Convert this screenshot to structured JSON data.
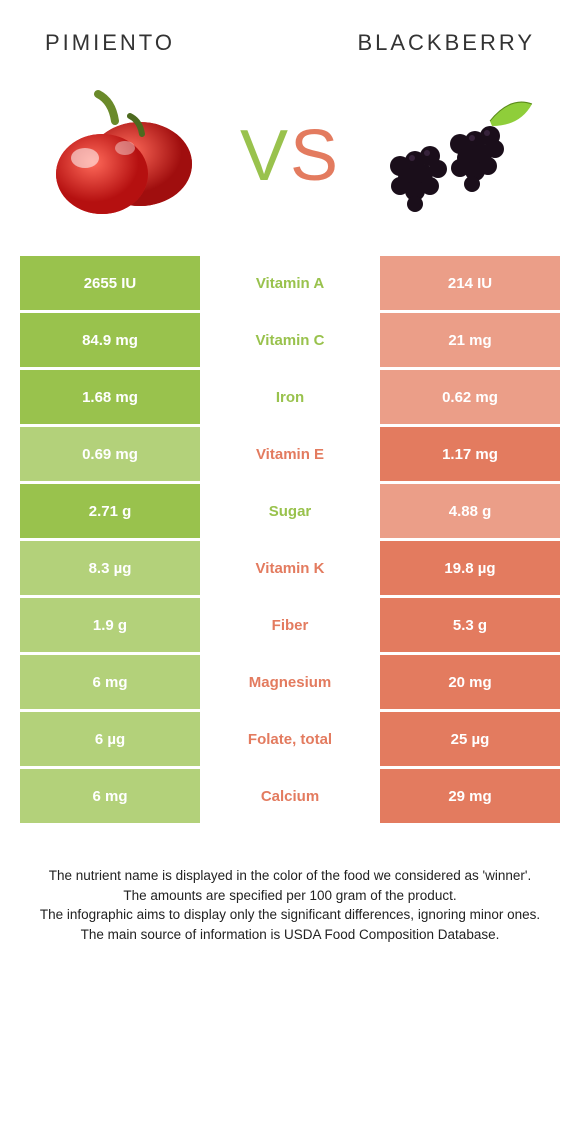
{
  "colors": {
    "left": "#99c24d",
    "right": "#e37b5f",
    "left_dim": "#b3d17a",
    "right_dim": "#eb9e88"
  },
  "header": {
    "left_title": "Pimiento",
    "right_title": "Blackberry"
  },
  "vs": {
    "v": "V",
    "s": "S"
  },
  "rows": [
    {
      "nutrient": "Vitamin A",
      "left_val": "2655 IU",
      "right_val": "214 IU",
      "winner": "left"
    },
    {
      "nutrient": "Vitamin C",
      "left_val": "84.9 mg",
      "right_val": "21 mg",
      "winner": "left"
    },
    {
      "nutrient": "Iron",
      "left_val": "1.68 mg",
      "right_val": "0.62 mg",
      "winner": "left"
    },
    {
      "nutrient": "Vitamin E",
      "left_val": "0.69 mg",
      "right_val": "1.17 mg",
      "winner": "right"
    },
    {
      "nutrient": "Sugar",
      "left_val": "2.71 g",
      "right_val": "4.88 g",
      "winner": "left"
    },
    {
      "nutrient": "Vitamin K",
      "left_val": "8.3 µg",
      "right_val": "19.8 µg",
      "winner": "right"
    },
    {
      "nutrient": "Fiber",
      "left_val": "1.9 g",
      "right_val": "5.3 g",
      "winner": "right"
    },
    {
      "nutrient": "Magnesium",
      "left_val": "6 mg",
      "right_val": "20 mg",
      "winner": "right"
    },
    {
      "nutrient": "Folate, total",
      "left_val": "6 µg",
      "right_val": "25 µg",
      "winner": "right"
    },
    {
      "nutrient": "Calcium",
      "left_val": "6 mg",
      "right_val": "29 mg",
      "winner": "right"
    }
  ],
  "footnotes": {
    "l1": "The nutrient name is displayed in the color of the food we considered as 'winner'.",
    "l2": "The amounts are specified per 100 gram of the product.",
    "l3": "The infographic aims to display only the significant differences, ignoring minor ones.",
    "l4": "The main source of information is USDA Food Composition Database."
  }
}
